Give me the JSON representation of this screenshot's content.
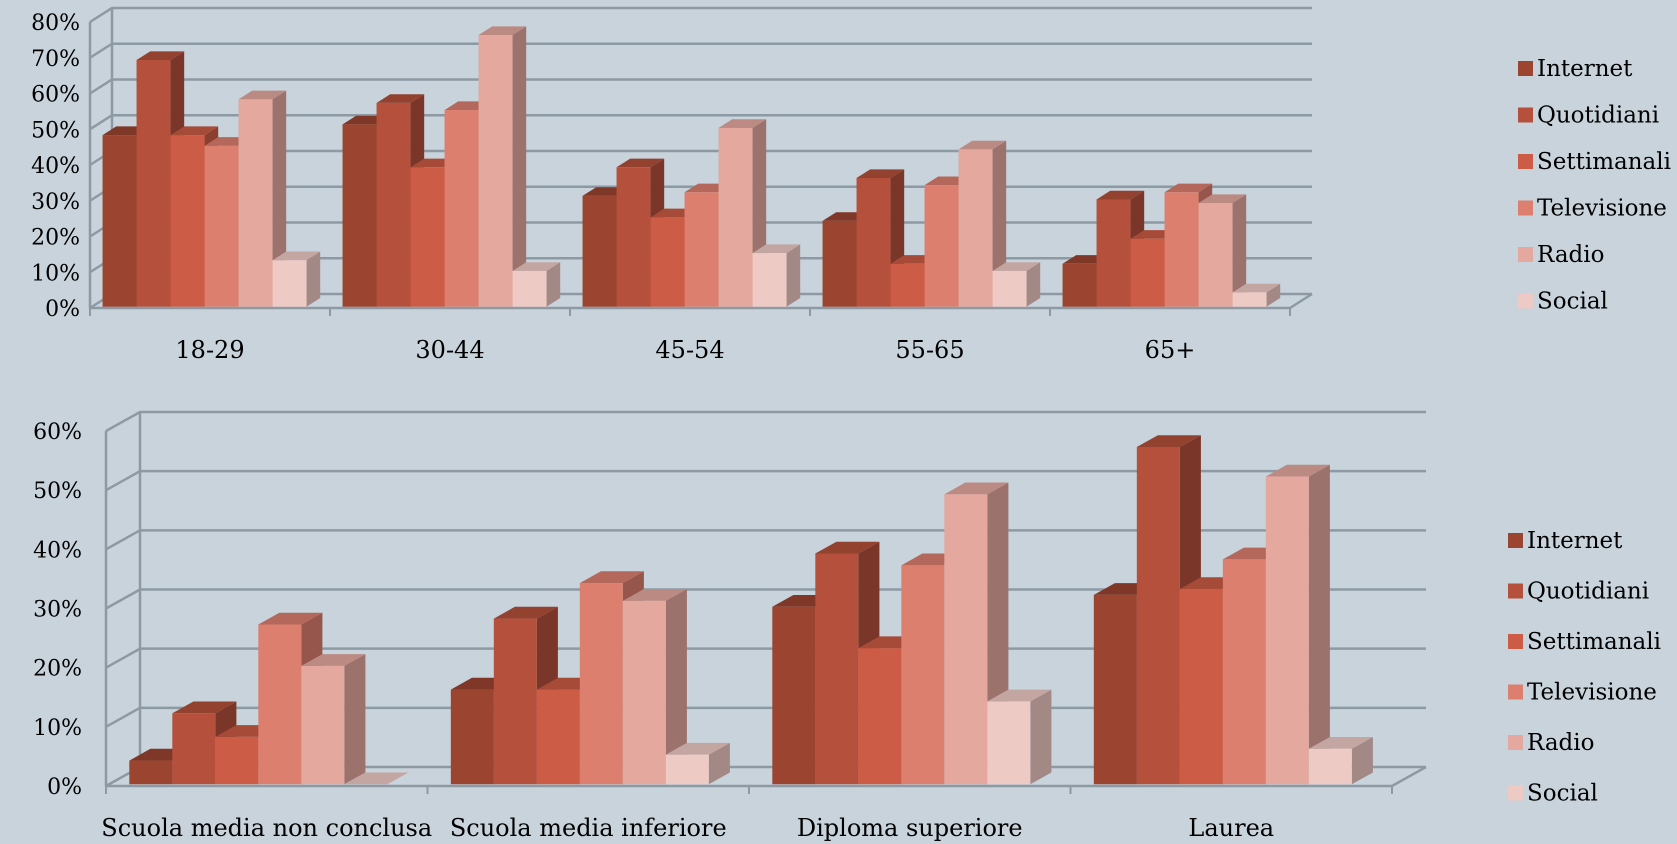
{
  "colors": {
    "background": "#c8d3db",
    "grid": "#8d9aa3",
    "series": [
      "#9b4430",
      "#b4503b",
      "#cc5c45",
      "#dc7f6f",
      "#e4a89f",
      "#eecac5"
    ]
  },
  "chart_data": [
    {
      "type": "bar",
      "title": "",
      "xlabel": "",
      "ylabel": "",
      "ylim": [
        0,
        0.8
      ],
      "yticks": [
        0,
        0.1,
        0.2,
        0.3,
        0.4,
        0.5,
        0.6,
        0.7,
        0.8
      ],
      "ytick_labels": [
        "0%",
        "10%",
        "20%",
        "30%",
        "40%",
        "50%",
        "60%",
        "70%",
        "80%"
      ],
      "grid": true,
      "legend_position": "right",
      "categories": [
        "18-29",
        "30-44",
        "45-54",
        "55-65",
        "65+"
      ],
      "series": [
        {
          "name": "Internet",
          "values": [
            0.48,
            0.51,
            0.31,
            0.24,
            0.12
          ]
        },
        {
          "name": "Quotidiani",
          "values": [
            0.69,
            0.57,
            0.39,
            0.36,
            0.3
          ]
        },
        {
          "name": "Settimanali",
          "values": [
            0.48,
            0.39,
            0.25,
            0.12,
            0.19
          ]
        },
        {
          "name": "Televisione",
          "values": [
            0.45,
            0.55,
            0.32,
            0.34,
            0.32
          ]
        },
        {
          "name": "Radio",
          "values": [
            0.58,
            0.76,
            0.5,
            0.44,
            0.29
          ]
        },
        {
          "name": "Social",
          "values": [
            0.13,
            0.1,
            0.15,
            0.1,
            0.04
          ]
        }
      ]
    },
    {
      "type": "bar",
      "title": "",
      "xlabel": "",
      "ylabel": "",
      "ylim": [
        0,
        0.6
      ],
      "yticks": [
        0,
        0.1,
        0.2,
        0.3,
        0.4,
        0.5,
        0.6
      ],
      "ytick_labels": [
        "0%",
        "10%",
        "20%",
        "30%",
        "40%",
        "50%",
        "60%"
      ],
      "grid": true,
      "legend_position": "right",
      "categories": [
        "Scuola media non conclusa",
        "Scuola media inferiore",
        "Diploma superiore",
        "Laurea"
      ],
      "series": [
        {
          "name": "Internet",
          "values": [
            0.04,
            0.16,
            0.3,
            0.32
          ]
        },
        {
          "name": "Quotidiani",
          "values": [
            0.12,
            0.28,
            0.39,
            0.57
          ]
        },
        {
          "name": "Settimanali",
          "values": [
            0.08,
            0.16,
            0.23,
            0.33
          ]
        },
        {
          "name": "Televisione",
          "values": [
            0.27,
            0.34,
            0.37,
            0.38
          ]
        },
        {
          "name": "Radio",
          "values": [
            0.2,
            0.31,
            0.49,
            0.52
          ]
        },
        {
          "name": "Social",
          "values": [
            0.0,
            0.05,
            0.14,
            0.06
          ]
        }
      ]
    }
  ]
}
